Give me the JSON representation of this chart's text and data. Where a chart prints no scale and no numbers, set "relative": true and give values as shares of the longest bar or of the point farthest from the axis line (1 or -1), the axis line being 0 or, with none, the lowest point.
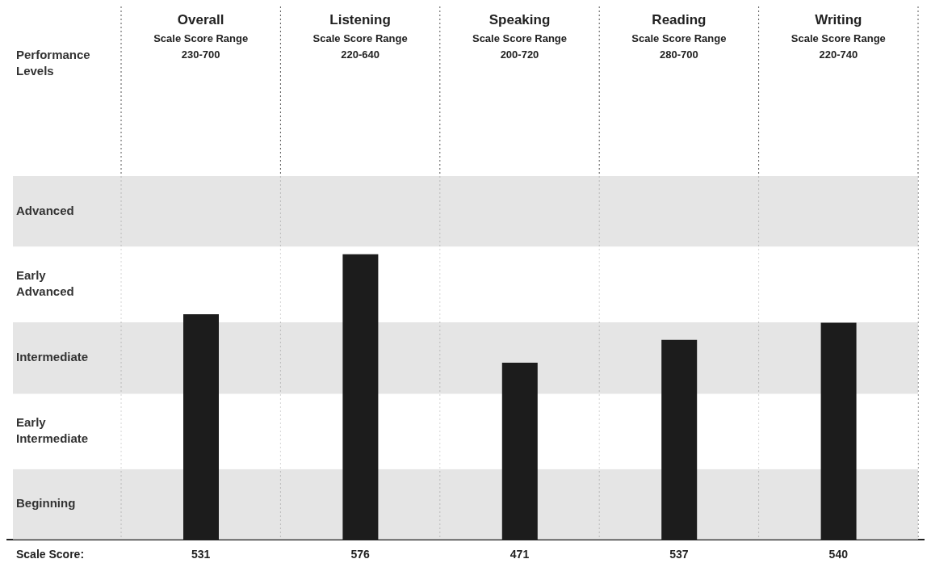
{
  "chart_data": {
    "type": "bar",
    "relative": true,
    "ylabel": "Performance Levels",
    "categories": [
      "Overall\nScale Score Range\n230-700",
      "Listening\nScale Score Range\n220-640",
      "Speaking\nScale Score Range\n200-720",
      "Reading\nScale Score Range\n280-700",
      "Writing\nScale Score Range\n220-740"
    ],
    "values": [
      0.79,
      1,
      0.62,
      0.7,
      0.76
    ],
    "color": "#1c1c1c",
    "annotations": [
      "Scale Score:",
      "531",
      "576",
      "471",
      "537",
      "540"
    ],
    "bands": [
      {
        "axis": "y",
        "from": 0,
        "to": 0.247,
        "label": "Beginning",
        "color": "#dcdcdc"
      },
      {
        "axis": "y",
        "from": 0.247,
        "to": 0.511,
        "label": "Early\nIntermediate",
        "color": "#ffffff"
      },
      {
        "axis": "y",
        "from": 0.511,
        "to": 0.762,
        "label": "Intermediate",
        "color": "#dcdcdc"
      },
      {
        "axis": "y",
        "from": 0.762,
        "to": 1.027,
        "label": "Early\nAdvanced",
        "color": "#ffffff"
      },
      {
        "axis": "y",
        "from": 1.027,
        "to": 1.274,
        "label": "Advanced",
        "color": "#dcdcdc"
      }
    ],
    "grid": "x",
    "line_style": "dotted"
  }
}
